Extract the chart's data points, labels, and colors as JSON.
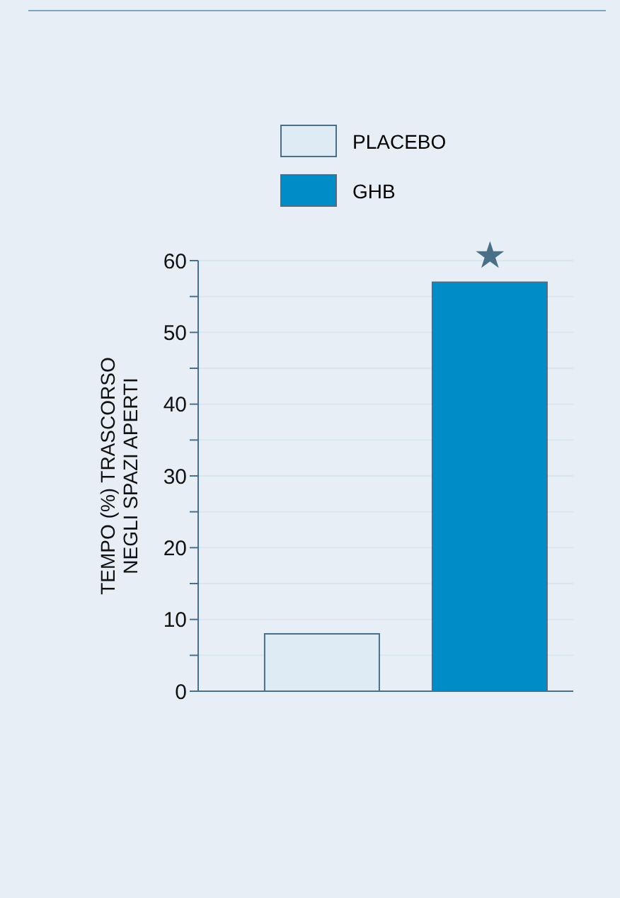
{
  "chart_data": {
    "type": "bar",
    "ylabel": "TEMPO (%) TRASCORSO\nNEGLI SPAZI APERTI",
    "categories": [
      null,
      null
    ],
    "series": [
      {
        "name": "PLACEBO",
        "color": "#deebf4",
        "values": [
          8,
          null
        ]
      },
      {
        "name": "GHB",
        "color": "#008cc6",
        "values": [
          null,
          57
        ]
      }
    ],
    "ylim": [
      0,
      60
    ],
    "yticks": [
      0,
      {
        "value": 5,
        "label": null
      },
      10,
      {
        "value": 15,
        "label": null
      },
      20,
      {
        "value": 25,
        "label": null
      },
      30,
      {
        "value": 35,
        "label": null
      },
      40,
      {
        "value": 45,
        "label": null
      },
      50,
      {
        "value": 55,
        "label": null
      },
      60
    ],
    "grid": "y",
    "legend": "top",
    "annotations": [
      "★"
    ]
  }
}
